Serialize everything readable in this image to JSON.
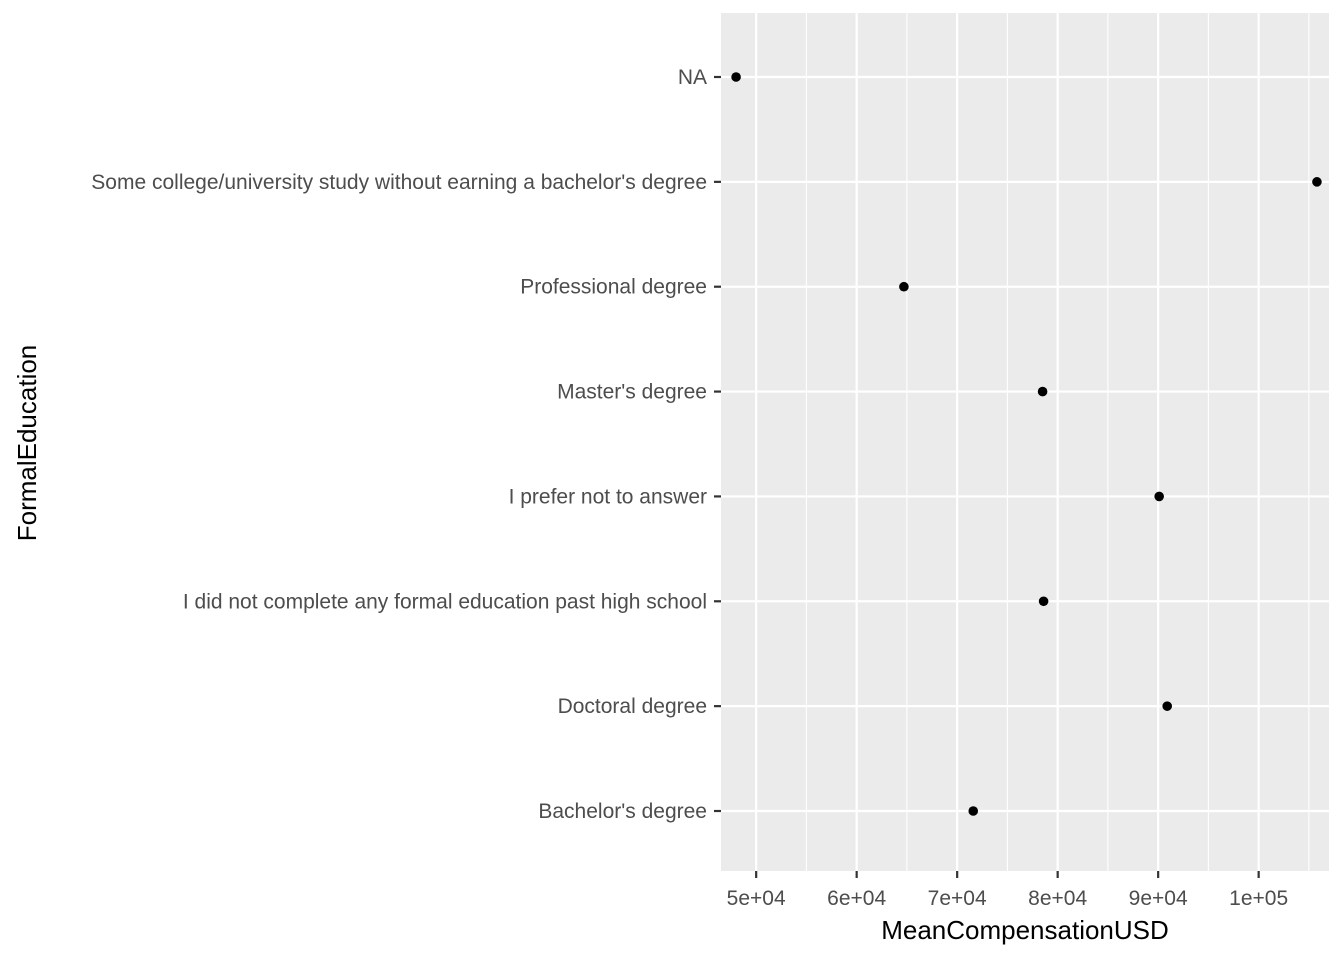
{
  "chart_data": {
    "type": "scatter",
    "title": "",
    "xlabel": "MeanCompensationUSD",
    "ylabel": "FormalEducation",
    "xlim": [
      46500,
      107000
    ],
    "x_ticks": [
      50000,
      60000,
      70000,
      80000,
      90000,
      100000
    ],
    "x_tick_labels": [
      "5e+04",
      "6e+04",
      "7e+04",
      "8e+04",
      "9e+04",
      "1e+05"
    ],
    "categories": [
      "Bachelor's degree",
      "Doctoral degree",
      "I did not complete any formal education past high school",
      "I prefer not to answer",
      "Master's degree",
      "Professional degree",
      "Some college/university study without earning a bachelor's degree",
      "NA"
    ],
    "values": [
      71600,
      90900,
      78600,
      90100,
      78500,
      64700,
      105800,
      48000
    ],
    "grid": true,
    "legend": "none",
    "colors": {
      "panel": "#ebebeb",
      "grid": "#ffffff",
      "point": "#000000",
      "tick_text": "#4d4d4d",
      "tick": "#333333"
    }
  }
}
